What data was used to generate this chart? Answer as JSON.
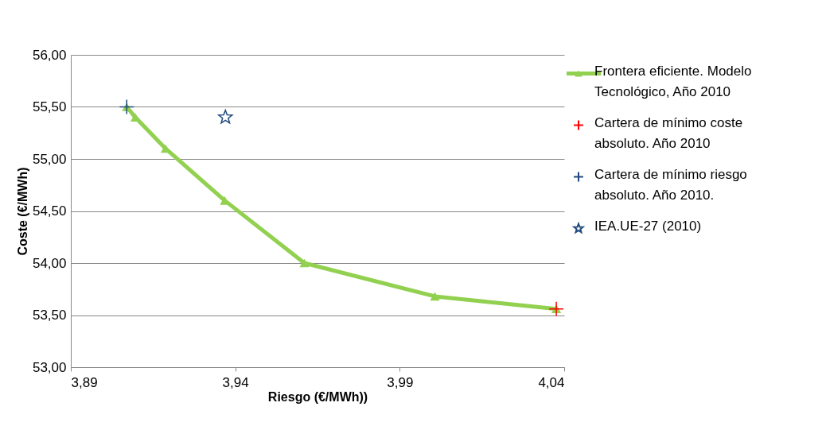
{
  "chart_data": {
    "type": "scatter",
    "xlabel": "Riesgo (€/MWh))",
    "ylabel": "Coste (€/MWh)",
    "xlim": [
      3.89,
      4.04
    ],
    "xticks": [
      {
        "value": 3.89,
        "label": "3,89"
      },
      {
        "value": 3.94,
        "label": "3,94"
      },
      {
        "value": 3.99,
        "label": "3,99"
      },
      {
        "value": 4.04,
        "label": "4,04"
      }
    ],
    "ylim": [
      53,
      56
    ],
    "yticks": [
      {
        "value": 53,
        "label": "53,00"
      },
      {
        "value": 53.5,
        "label": "53,50"
      },
      {
        "value": 54,
        "label": "54,00"
      },
      {
        "value": 54.5,
        "label": "54,50"
      },
      {
        "value": 55,
        "label": "55,00"
      },
      {
        "value": 55.5,
        "label": "55,50"
      },
      {
        "value": 56,
        "label": "56,00"
      }
    ],
    "grid": "y",
    "legend": "right",
    "series": [
      {
        "name": "Frontera eficiente. Modelo Tecnológico, Año 2010",
        "type": "line",
        "marker": "triangle",
        "color": "#92d050",
        "x": [
          3.907,
          3.9096,
          3.9188,
          3.9368,
          3.961,
          4.0007,
          4.0376
        ],
        "values": [
          55.5,
          55.4,
          55.1,
          54.6,
          54.0,
          53.68,
          53.56
        ]
      },
      {
        "name": "Cartera de mínimo coste absoluto. Año 2010",
        "marker": "cross",
        "color": "#ff0000",
        "x": [
          4.0376
        ],
        "values": [
          53.56
        ]
      },
      {
        "name": "Cartera de mínimo riesgo absoluto. Año 2010.",
        "marker": "cross",
        "color": "#1f497d",
        "x": [
          3.907
        ],
        "values": [
          55.5
        ]
      },
      {
        "name": "IEA.UE-27 (2010)",
        "marker": "star",
        "color": "#1f497d",
        "x": [
          3.937
        ],
        "values": [
          55.4
        ]
      }
    ]
  }
}
